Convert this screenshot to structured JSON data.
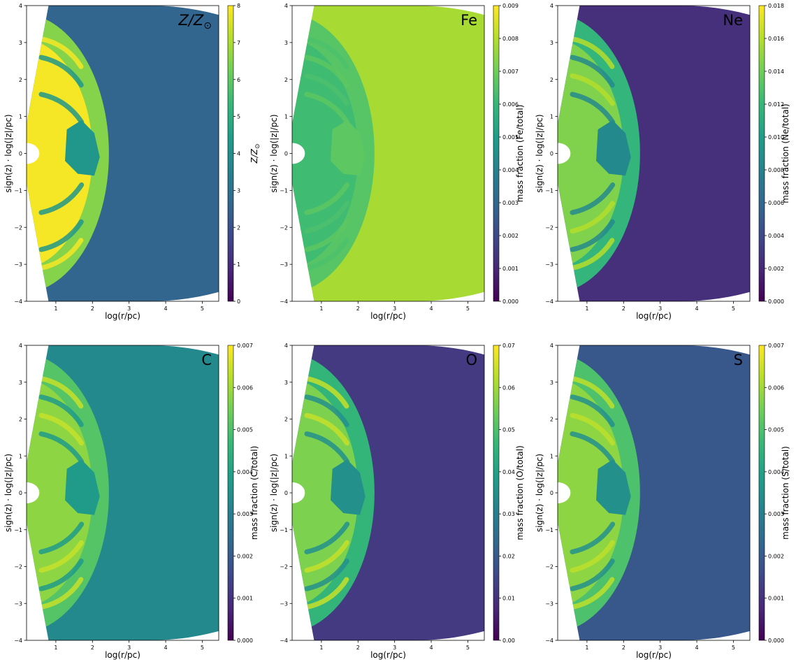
{
  "chart_data": [
    {
      "type": "heatmap",
      "panel_label": "Z/Z",
      "panel_label_sub": "⊙",
      "colorbar_label": "Z/Z",
      "colorbar_label_sub": "⊙",
      "xlabel": "log(r/pc)",
      "ylabel": "sign(z) · log(|z|/pc)",
      "xlim": [
        0.2,
        5.45
      ],
      "ylim": [
        -4,
        4
      ],
      "xticks": [
        "1",
        "2",
        "3",
        "4",
        "5"
      ],
      "yticks": [
        "−4",
        "−3",
        "−2",
        "−1",
        "0",
        "1",
        "2",
        "3",
        "4"
      ],
      "cbar_ticks": [
        "0",
        "1",
        "2",
        "3",
        "4",
        "5",
        "6",
        "7",
        "8"
      ],
      "cbar_range": [
        0,
        8
      ],
      "values": {
        "inner": 7.9,
        "shell": 6.5,
        "filament": 7.9,
        "knot": 4.2,
        "outer": 2.6
      },
      "colormap": "viridis"
    },
    {
      "type": "heatmap",
      "panel_label": "Fe",
      "colorbar_label": "mass fraction  (Fe/total)",
      "xlabel": "log(r/pc)",
      "ylabel": "sign(z) · log(|z|/pc)",
      "xlim": [
        0.2,
        5.45
      ],
      "ylim": [
        -4,
        4
      ],
      "xticks": [
        "1",
        "2",
        "3",
        "4",
        "5"
      ],
      "yticks": [
        "−4",
        "−3",
        "−2",
        "−1",
        "0",
        "1",
        "2",
        "3",
        "4"
      ],
      "cbar_ticks": [
        "0.000",
        "0.001",
        "0.002",
        "0.003",
        "0.004",
        "0.005",
        "0.006",
        "0.007",
        "0.008",
        "0.009"
      ],
      "cbar_range": [
        0,
        0.009
      ],
      "values": {
        "inner": 0.0062,
        "shell": 0.0066,
        "filament": 0.0064,
        "knot": 0.0067,
        "outer": 0.0078
      },
      "colormap": "viridis"
    },
    {
      "type": "heatmap",
      "panel_label": "Ne",
      "colorbar_label": "mass fraction  (Ne/total)",
      "xlabel": "log(r/pc)",
      "ylabel": "sign(z) · log(|z|/pc)",
      "xlim": [
        0.2,
        5.45
      ],
      "ylim": [
        -4,
        4
      ],
      "xticks": [
        "1",
        "2",
        "3",
        "4",
        "5"
      ],
      "yticks": [
        "−4",
        "−3",
        "−2",
        "−1",
        "0",
        "1",
        "2",
        "3",
        "4"
      ],
      "cbar_ticks": [
        "0.000",
        "0.002",
        "0.004",
        "0.006",
        "0.008",
        "0.010",
        "0.012",
        "0.014",
        "0.016",
        "0.018"
      ],
      "cbar_range": [
        0,
        0.018
      ],
      "values": {
        "inner": 0.0145,
        "shell": 0.0118,
        "filament": 0.016,
        "knot": 0.0085,
        "outer": 0.0025
      },
      "colormap": "viridis"
    },
    {
      "type": "heatmap",
      "panel_label": "C",
      "colorbar_label": "mass fraction  (C/total)",
      "xlabel": "log(r/pc)",
      "ylabel": "sign(z) · log(|z|/pc)",
      "xlim": [
        0.2,
        5.45
      ],
      "ylim": [
        -4,
        4
      ],
      "xticks": [
        "1",
        "2",
        "3",
        "4",
        "5"
      ],
      "yticks": [
        "−4",
        "−3",
        "−2",
        "−1",
        "0",
        "1",
        "2",
        "3",
        "4"
      ],
      "cbar_ticks": [
        "0.000",
        "0.001",
        "0.002",
        "0.003",
        "0.004",
        "0.005",
        "0.006",
        "0.007"
      ],
      "cbar_range": [
        0,
        0.007
      ],
      "values": {
        "inner": 0.0058,
        "shell": 0.0051,
        "filament": 0.0064,
        "knot": 0.0038,
        "outer": 0.0033
      },
      "colormap": "viridis"
    },
    {
      "type": "heatmap",
      "panel_label": "O",
      "colorbar_label": "mass fraction  (O/total)",
      "xlabel": "log(r/pc)",
      "ylabel": "sign(z) · log(|z|/pc)",
      "xlim": [
        0.2,
        5.45
      ],
      "ylim": [
        -4,
        4
      ],
      "xticks": [
        "1",
        "2",
        "3",
        "4",
        "5"
      ],
      "yticks": [
        "−4",
        "−3",
        "−2",
        "−1",
        "0",
        "1",
        "2",
        "3",
        "4"
      ],
      "cbar_ticks": [
        "0.00",
        "0.01",
        "0.02",
        "0.03",
        "0.04",
        "0.05",
        "0.06",
        "0.07"
      ],
      "cbar_range": [
        0,
        0.07
      ],
      "values": {
        "inner": 0.056,
        "shell": 0.046,
        "filament": 0.064,
        "knot": 0.035,
        "outer": 0.012
      },
      "colormap": "viridis"
    },
    {
      "type": "heatmap",
      "panel_label": "S",
      "colorbar_label": "mass fraction  (S/total)",
      "xlabel": "log(r/pc)",
      "ylabel": "sign(z) · log(|z|/pc)",
      "xlim": [
        0.2,
        5.45
      ],
      "ylim": [
        -4,
        4
      ],
      "xticks": [
        "1",
        "2",
        "3",
        "4",
        "5"
      ],
      "yticks": [
        "−4",
        "−3",
        "−2",
        "−1",
        "0",
        "1",
        "2",
        "3",
        "4"
      ],
      "cbar_ticks": [
        "0.000",
        "0.001",
        "0.002",
        "0.003",
        "0.004",
        "0.005",
        "0.006",
        "0.007"
      ],
      "cbar_range": [
        0,
        0.007
      ],
      "values": {
        "inner": 0.0058,
        "shell": 0.005,
        "filament": 0.0063,
        "knot": 0.0035,
        "outer": 0.0019
      },
      "colormap": "viridis"
    }
  ]
}
